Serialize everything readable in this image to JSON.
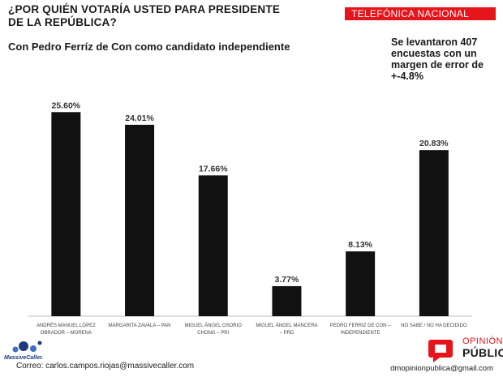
{
  "header": {
    "title_line1": "¿POR QUIÉN VOTARÍA USTED PARA PRESIDENTE",
    "title_line2": "DE LA REPÚBLICA?",
    "subtitle": "Con Pedro Ferríz de Con como candidato independiente",
    "badge": "TELEFÓNICA NACIONAL",
    "note_lines": [
      "Se levantaron 407",
      "encuestas con un",
      "margen de error de",
      "+-4.8%"
    ]
  },
  "chart_data": {
    "type": "bar",
    "categories": [
      [
        "ANDRÉS MANUEL LÓPEZ",
        "OBRADOR – MORENA"
      ],
      [
        "MARGARITA ZAVALA – PAN"
      ],
      [
        "MIGUEL ÁNGEL OSORIO",
        "CHONG – PRI"
      ],
      [
        "MIGUEL ÁNGEL MANCERA",
        "– PRD"
      ],
      [
        "PEDRO FERRIZ DE CON –",
        "INDEPENDIENTE"
      ],
      [
        "NO SABE / NO HA DECIDIDO"
      ]
    ],
    "values": [
      25.6,
      24.01,
      17.66,
      3.77,
      8.13,
      20.83
    ],
    "data_labels": [
      "25.60%",
      "24.01%",
      "17.66%",
      "3.77%",
      "8.13%",
      "20.83%"
    ],
    "ylim": [
      0,
      30
    ],
    "bar_color": "#111111"
  },
  "footer": {
    "left": "Correo:  carlos.campos.riojas@massivecaller.com",
    "right": "dmopinionpublica@gmail.com",
    "left_logo_text": "MassiveCaller.",
    "right_logo_line1": "OPINIÓN",
    "right_logo_line2": "PÚBLICA"
  },
  "colors": {
    "accent": "#e6141b",
    "logo_blue": "#1f3a7a"
  }
}
